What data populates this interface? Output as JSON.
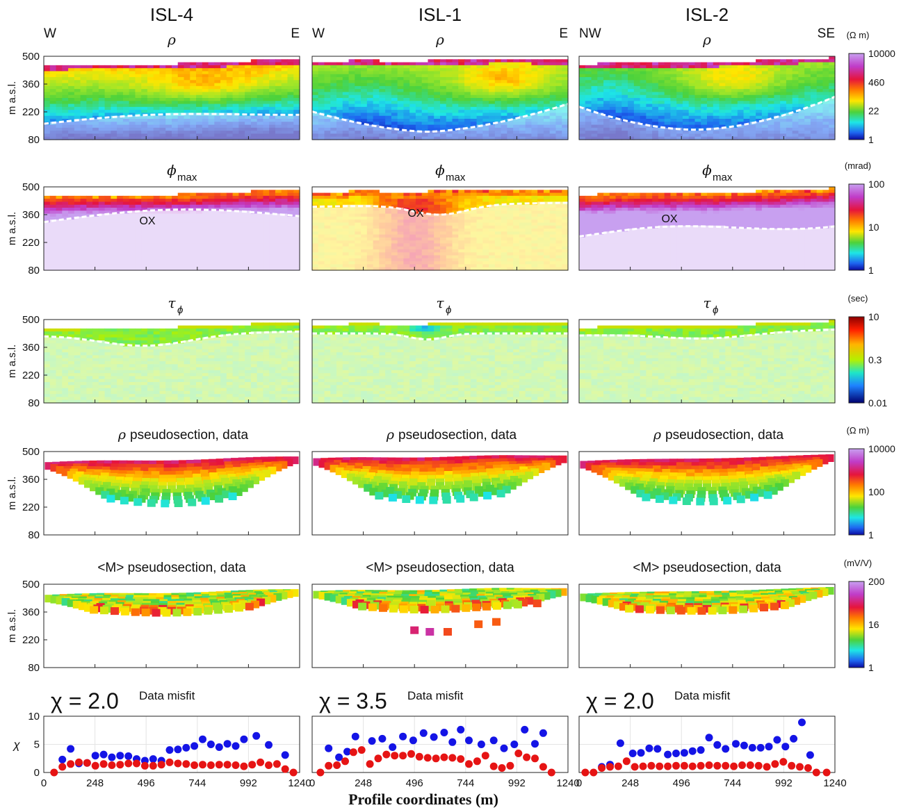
{
  "columns": [
    {
      "title": "ISL-4",
      "dir_left": "W",
      "dir_right": "E"
    },
    {
      "title": "ISL-1",
      "dir_left": "W",
      "dir_right": "E"
    },
    {
      "title": "ISL-2",
      "dir_left": "NW",
      "dir_right": "SE"
    }
  ],
  "rows": [
    {
      "id": "rho",
      "symbol": "ρ",
      "subscript": "",
      "caption": "",
      "colorbar": {
        "unit": "(Ω m)",
        "ticks": [
          "10000",
          "460",
          "22",
          "1"
        ]
      }
    },
    {
      "id": "phimax",
      "symbol": "ϕ",
      "subscript": "max",
      "caption": "",
      "annotation": "OX",
      "colorbar": {
        "unit": "(mrad)",
        "ticks": [
          "100",
          "10",
          "1"
        ]
      }
    },
    {
      "id": "tau",
      "symbol": "τ",
      "subscript": "ϕ",
      "caption": "",
      "colorbar": {
        "unit": "(sec)",
        "ticks": [
          "10",
          "0.3",
          "0.01"
        ]
      }
    },
    {
      "id": "rho_pseudo",
      "symbol": "ρ",
      "subscript": "",
      "caption": "pseudosection, data",
      "colorbar": {
        "unit": "(Ω m)",
        "ticks": [
          "10000",
          "100",
          "1"
        ]
      }
    },
    {
      "id": "m_pseudo",
      "symbol": "",
      "subscript": "",
      "caption": "<M> pseudosection, data",
      "colorbar": {
        "unit": "(mV/V)",
        "ticks": [
          "200",
          "16",
          "1"
        ]
      }
    }
  ],
  "axes": {
    "ylabel": "m a.s.l.",
    "yticks": [
      "500",
      "360",
      "220",
      "80"
    ],
    "ylim": [
      80,
      500
    ],
    "xlim": [
      0,
      1240
    ],
    "xticks": [
      "0",
      "248",
      "496",
      "744",
      "992",
      "1240"
    ]
  },
  "misfit": {
    "title": "Data misfit",
    "ylabel": "χ",
    "yticks": [
      "10",
      "5",
      "0"
    ],
    "xlabel": "Profile coordinates (m)",
    "chi_labels": [
      "χ = 2.0",
      "χ = 3.5",
      "χ = 2.0"
    ],
    "colors": {
      "blue": "#1414e6",
      "red": "#e61414"
    }
  },
  "chart_data": [
    {
      "type": "scatter",
      "title": "ISL-4 Data misfit",
      "xlim": [
        0,
        1240
      ],
      "ylim": [
        0,
        10
      ],
      "series": [
        {
          "color": "blue",
          "x": [
            90,
            130,
            170,
            210,
            250,
            290,
            330,
            370,
            410,
            450,
            490,
            530,
            570,
            610,
            650,
            690,
            730,
            770,
            810,
            850,
            890,
            930,
            970,
            1030,
            1090,
            1170
          ],
          "y": [
            2.3,
            4.2,
            1.6,
            1.7,
            3.0,
            3.2,
            2.7,
            3.0,
            2.9,
            2.4,
            2.1,
            2.4,
            2.1,
            4.0,
            4.1,
            4.4,
            4.7,
            5.9,
            5.0,
            4.5,
            5.1,
            4.7,
            5.9,
            6.5,
            4.9,
            3.1
          ]
        },
        {
          "color": "red",
          "x": [
            50,
            90,
            130,
            170,
            210,
            250,
            290,
            330,
            370,
            410,
            450,
            490,
            530,
            570,
            610,
            650,
            690,
            730,
            770,
            810,
            850,
            890,
            930,
            970,
            1010,
            1050,
            1090,
            1130,
            1170,
            1210
          ],
          "y": [
            0,
            1.0,
            1.5,
            1.8,
            1.7,
            1.2,
            1.5,
            1.3,
            1.4,
            1.6,
            1.6,
            1.2,
            1.2,
            1.4,
            1.8,
            1.6,
            1.5,
            1.3,
            1.4,
            1.3,
            1.4,
            1.4,
            1.3,
            1.1,
            1.4,
            1.8,
            1.3,
            1.5,
            0.6,
            0
          ]
        }
      ]
    },
    {
      "type": "scatter",
      "title": "ISL-1 Data misfit",
      "xlim": [
        0,
        1240
      ],
      "ylim": [
        0,
        10
      ],
      "series": [
        {
          "color": "blue",
          "x": [
            80,
            130,
            170,
            210,
            290,
            340,
            390,
            440,
            490,
            540,
            590,
            640,
            680,
            720,
            760,
            820,
            880,
            930,
            980,
            1030,
            1080,
            1120
          ],
          "y": [
            4.3,
            2.7,
            3.7,
            6.4,
            5.6,
            6.0,
            4.5,
            6.4,
            5.7,
            7.0,
            6.3,
            7.1,
            5.4,
            7.6,
            5.7,
            5.0,
            5.7,
            4.3,
            5.0,
            7.6,
            5.1,
            7.0
          ]
        },
        {
          "color": "red",
          "x": [
            40,
            80,
            120,
            160,
            200,
            240,
            280,
            320,
            360,
            400,
            440,
            480,
            520,
            560,
            600,
            640,
            680,
            720,
            760,
            800,
            840,
            880,
            920,
            960,
            1000,
            1040,
            1080,
            1120,
            1160
          ],
          "y": [
            0,
            1.2,
            1.3,
            2.0,
            3.6,
            4.0,
            1.5,
            2.5,
            3.2,
            3.0,
            3.0,
            3.3,
            2.8,
            2.6,
            2.5,
            2.7,
            2.6,
            2.4,
            1.5,
            2.0,
            3.0,
            1.1,
            0.8,
            1.2,
            3.4,
            2.7,
            2.5,
            1.0,
            0
          ]
        }
      ]
    },
    {
      "type": "scatter",
      "title": "ISL-2 Data misfit",
      "xlim": [
        0,
        1240
      ],
      "ylim": [
        0,
        10
      ],
      "series": [
        {
          "color": "blue",
          "x": [
            110,
            150,
            200,
            260,
            300,
            340,
            380,
            430,
            470,
            510,
            550,
            590,
            630,
            670,
            710,
            760,
            800,
            840,
            880,
            920,
            960,
            1000,
            1040,
            1080,
            1120
          ],
          "y": [
            1.0,
            1.4,
            5.2,
            3.4,
            3.5,
            4.3,
            4.2,
            3.2,
            3.4,
            3.5,
            3.8,
            4.0,
            6.2,
            4.9,
            4.2,
            5.1,
            4.8,
            4.4,
            4.4,
            4.6,
            5.8,
            4.6,
            6.0,
            8.9,
            3.1
          ]
        },
        {
          "color": "red",
          "x": [
            30,
            70,
            110,
            150,
            190,
            230,
            270,
            310,
            350,
            390,
            430,
            470,
            510,
            550,
            590,
            630,
            670,
            710,
            750,
            790,
            830,
            870,
            910,
            950,
            990,
            1030,
            1070,
            1110,
            1150,
            1200
          ],
          "y": [
            0,
            0,
            0.8,
            1.0,
            1.1,
            2.0,
            1.0,
            1.1,
            1.2,
            1.1,
            1.1,
            1.2,
            1.2,
            1.1,
            1.2,
            1.3,
            1.2,
            1.2,
            1.1,
            1.3,
            1.3,
            1.2,
            1.0,
            1.5,
            1.9,
            1.2,
            1.0,
            0.8,
            0,
            0
          ]
        }
      ]
    }
  ]
}
